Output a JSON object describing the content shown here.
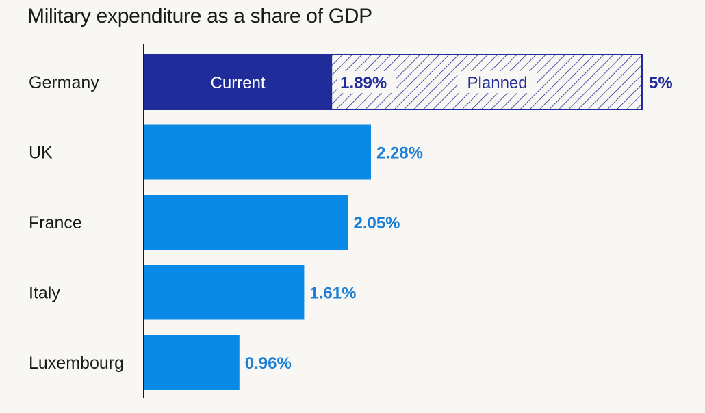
{
  "chart_data": {
    "type": "bar",
    "orientation": "horizontal",
    "title": "Military expenditure as a share of GDP",
    "xlabel": "",
    "ylabel": "",
    "categories": [
      "Germany",
      "UK",
      "France",
      "Italy",
      "Luxembourg"
    ],
    "values": [
      1.89,
      2.28,
      2.05,
      1.61,
      0.96
    ],
    "value_labels": [
      "1.89%",
      "2.28%",
      "2.05%",
      "1.61%",
      "0.96%"
    ],
    "unit": "%",
    "xlim": [
      0,
      5
    ],
    "grid": false,
    "legend": "none",
    "planned": {
      "category": "Germany",
      "value": 5,
      "label": "5%",
      "current_segment_label": "Current",
      "planned_segment_label": "Planned"
    },
    "colors": {
      "highlight": "#1f2c9a",
      "bar": "#0a8ae6",
      "bar_label": "#1a7fd6",
      "highlight_label": "#1f2c9a",
      "axis": "#1a1a1a",
      "text": "#1a1a1a"
    }
  }
}
